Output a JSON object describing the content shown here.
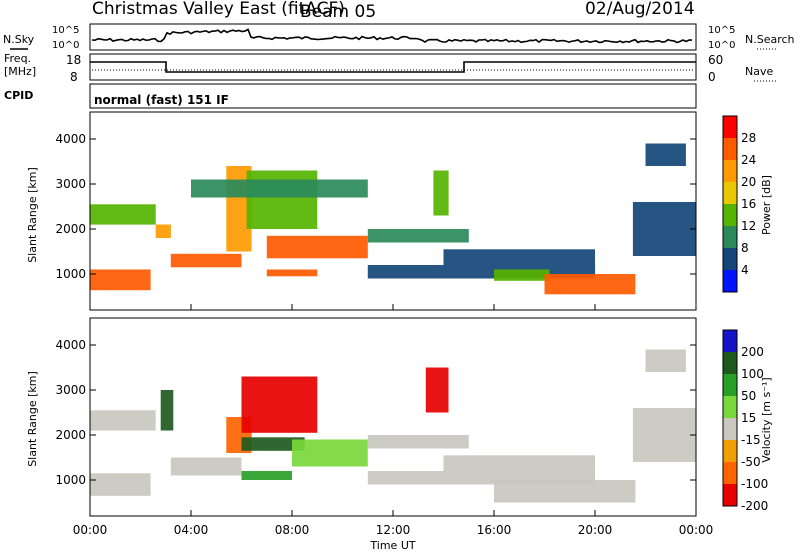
{
  "header": {
    "title": "Christmas Valley East (fitACF)",
    "beam": "Beam 05",
    "date": "02/Aug/2014"
  },
  "top_panels": {
    "noise": {
      "left_label": "N.Sky",
      "right_label": "N.Search",
      "left_ticks": [
        "10^5",
        "10^0"
      ],
      "right_ticks": [
        "10^5",
        "10^0"
      ]
    },
    "freq": {
      "left_label_line1": "Freq.",
      "left_label_line2": "[MHz]",
      "left_ticks": [
        "18",
        "8"
      ],
      "right_label": "Nave",
      "right_ticks": [
        "60",
        "0"
      ]
    },
    "cpid": {
      "label": "CPID",
      "value": "normal (fast) 151 IF"
    }
  },
  "chart_data": [
    {
      "type": "heatmap",
      "name": "power-panel",
      "ylabel": "Slant Range [km]",
      "yticks": [
        1000,
        2000,
        3000,
        4000
      ],
      "colorbar_label": "Power [dB]",
      "colorbar_ticks": [
        "28",
        "24",
        "20",
        "16",
        "12",
        "8",
        "4"
      ],
      "colorbar_colors": [
        "#ff0000",
        "#ff5a00",
        "#ff9a00",
        "#e8c800",
        "#55b400",
        "#2a8a5a",
        "#14467a",
        "#0014ff"
      ],
      "regions": [
        {
          "t0": 0.0,
          "t1": 2.4,
          "r0": 640,
          "r1": 1100,
          "level": 26
        },
        {
          "t0": 0.0,
          "t1": 2.6,
          "r0": 2100,
          "r1": 2550,
          "level": 12
        },
        {
          "t0": 2.6,
          "t1": 3.2,
          "r0": 1800,
          "r1": 2100,
          "level": 22
        },
        {
          "t0": 3.2,
          "t1": 6.0,
          "r0": 1150,
          "r1": 1450,
          "level": 24
        },
        {
          "t0": 5.4,
          "t1": 6.4,
          "r0": 1500,
          "r1": 3400,
          "level": 20
        },
        {
          "t0": 6.2,
          "t1": 9.0,
          "r0": 2000,
          "r1": 3300,
          "level": 14
        },
        {
          "t0": 7.0,
          "t1": 11.0,
          "r0": 1350,
          "r1": 1850,
          "level": 26
        },
        {
          "t0": 7.0,
          "t1": 9.0,
          "r0": 950,
          "r1": 1100,
          "level": 24
        },
        {
          "t0": 4.0,
          "t1": 11.0,
          "r0": 2700,
          "r1": 3100,
          "level": 10
        },
        {
          "t0": 11.0,
          "t1": 15.0,
          "r0": 1700,
          "r1": 2000,
          "level": 8
        },
        {
          "t0": 13.6,
          "t1": 14.2,
          "r0": 2300,
          "r1": 3300,
          "level": 14
        },
        {
          "t0": 11.0,
          "t1": 20.0,
          "r0": 900,
          "r1": 1200,
          "level": 6
        },
        {
          "t0": 14.0,
          "t1": 20.0,
          "r0": 1200,
          "r1": 1550,
          "level": 6
        },
        {
          "t0": 16.0,
          "t1": 18.2,
          "r0": 850,
          "r1": 1100,
          "level": 14
        },
        {
          "t0": 18.0,
          "t1": 21.6,
          "r0": 550,
          "r1": 1000,
          "level": 26
        },
        {
          "t0": 21.5,
          "t1": 24.0,
          "r0": 1400,
          "r1": 2600,
          "level": 6
        },
        {
          "t0": 22.0,
          "t1": 23.6,
          "r0": 3400,
          "r1": 3900,
          "level": 6
        }
      ]
    },
    {
      "type": "heatmap",
      "name": "velocity-panel",
      "ylabel": "Slant Range [km]",
      "yticks": [
        1000,
        2000,
        3000,
        4000
      ],
      "colorbar_label": "Velocity [m s⁻¹]",
      "colorbar_ticks": [
        "200",
        "100",
        "50",
        "15",
        "-15",
        "-50",
        "-100",
        "-200"
      ],
      "colorbar_colors": [
        "#1414c8",
        "#1e5a1e",
        "#28a028",
        "#78d83c",
        "#c8c8c0",
        "#f0a000",
        "#ff6400",
        "#e60000"
      ],
      "regions": [
        {
          "t0": 0.0,
          "t1": 2.4,
          "r0": 650,
          "r1": 1150,
          "v": 0
        },
        {
          "t0": 0.0,
          "t1": 2.6,
          "r0": 2100,
          "r1": 2550,
          "v": 0
        },
        {
          "t0": 2.8,
          "t1": 3.3,
          "r0": 2100,
          "r1": 3000,
          "v": 160
        },
        {
          "t0": 3.2,
          "t1": 6.0,
          "r0": 1100,
          "r1": 1500,
          "v": 0
        },
        {
          "t0": 5.4,
          "t1": 6.4,
          "r0": 1600,
          "r1": 2400,
          "v": -60
        },
        {
          "t0": 6.0,
          "t1": 9.0,
          "r0": 2050,
          "r1": 3300,
          "v": -180
        },
        {
          "t0": 6.0,
          "t1": 8.5,
          "r0": 1650,
          "r1": 1950,
          "v": 180
        },
        {
          "t0": 8.0,
          "t1": 11.0,
          "r0": 1300,
          "r1": 1900,
          "v": 40
        },
        {
          "t0": 6.0,
          "t1": 8.0,
          "r0": 1000,
          "r1": 1200,
          "v": 60
        },
        {
          "t0": 13.3,
          "t1": 14.2,
          "r0": 2500,
          "r1": 3500,
          "v": -190
        },
        {
          "t0": 11.0,
          "t1": 15.0,
          "r0": 1700,
          "r1": 2000,
          "v": 0
        },
        {
          "t0": 11.0,
          "t1": 20.0,
          "r0": 900,
          "r1": 1200,
          "v": 0
        },
        {
          "t0": 14.0,
          "t1": 20.0,
          "r0": 1200,
          "r1": 1550,
          "v": 0
        },
        {
          "t0": 16.0,
          "t1": 21.6,
          "r0": 500,
          "r1": 1000,
          "v": 0
        },
        {
          "t0": 21.5,
          "t1": 24.0,
          "r0": 1400,
          "r1": 2600,
          "v": 0
        },
        {
          "t0": 22.0,
          "t1": 23.6,
          "r0": 3400,
          "r1": 3900,
          "v": 0
        }
      ]
    }
  ],
  "time_axis": {
    "xlabel": "Time UT",
    "ticks": [
      "00:00",
      "04:00",
      "08:00",
      "12:00",
      "16:00",
      "20:00",
      "00:00"
    ]
  }
}
